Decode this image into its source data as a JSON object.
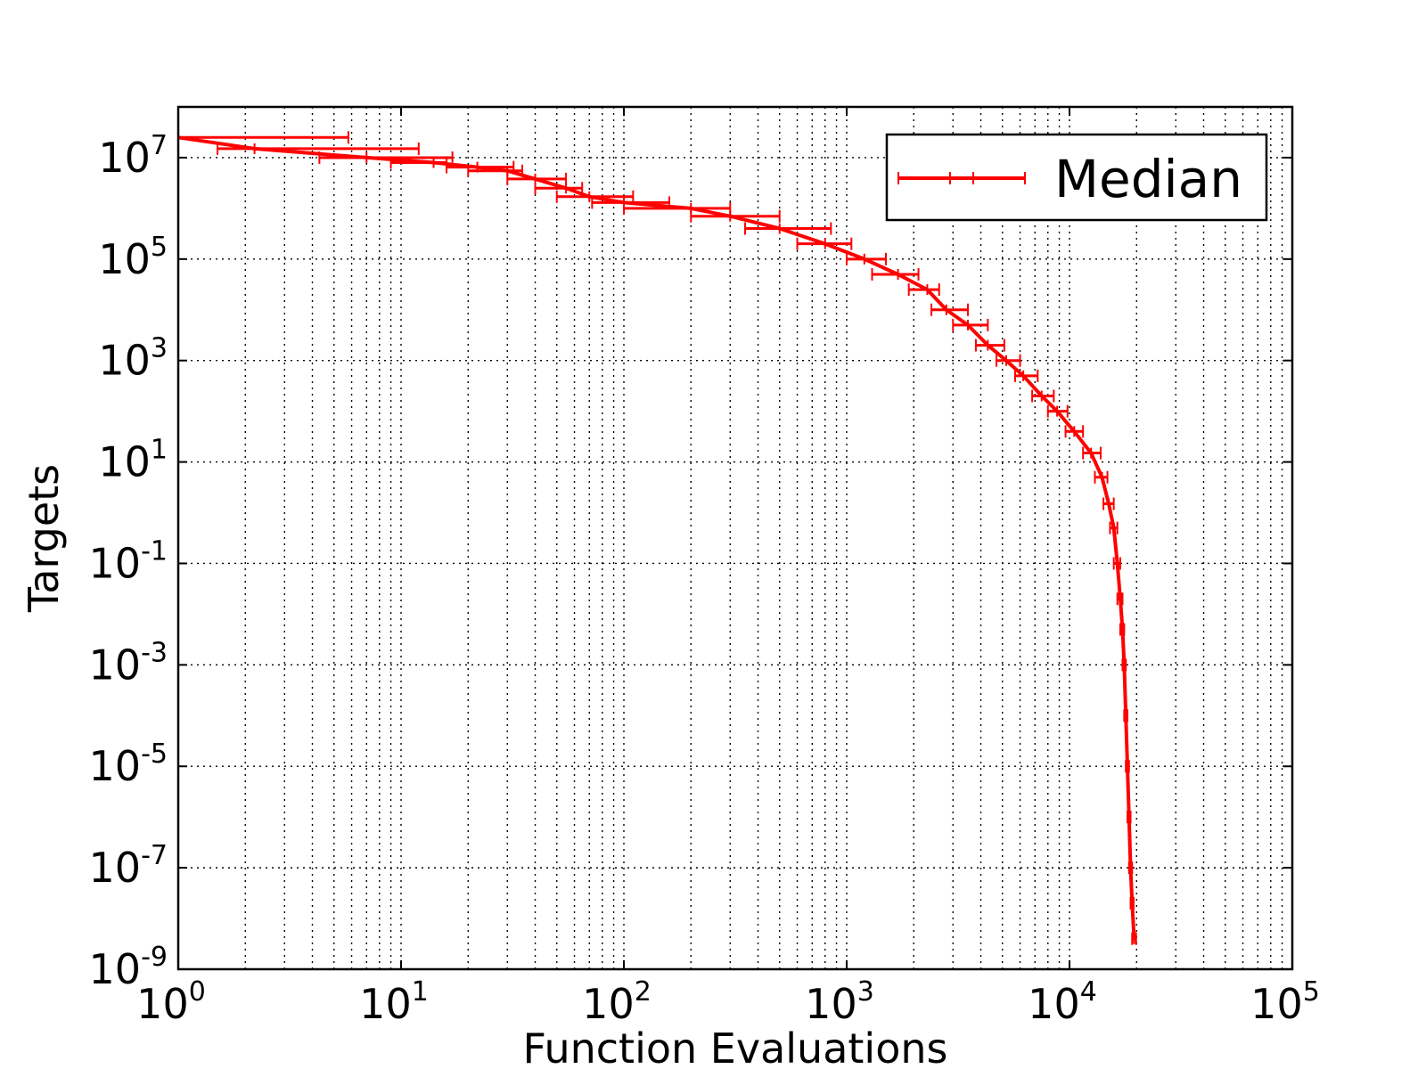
{
  "chart_data": {
    "type": "line",
    "xlabel": "Function Evaluations",
    "ylabel": "Targets",
    "xscale": "log",
    "yscale": "log",
    "xlim": [
      1,
      100000
    ],
    "ylim": [
      1e-09,
      100000000.0
    ],
    "grid": true,
    "legend": {
      "position": "top-right"
    },
    "x_ticks": [
      {
        "base": "10",
        "exp": "0"
      },
      {
        "base": "10",
        "exp": "1"
      },
      {
        "base": "10",
        "exp": "2"
      },
      {
        "base": "10",
        "exp": "3"
      },
      {
        "base": "10",
        "exp": "4"
      },
      {
        "base": "10",
        "exp": "5"
      }
    ],
    "y_ticks": [
      {
        "base": "10",
        "exp": "-9"
      },
      {
        "base": "10",
        "exp": "-7"
      },
      {
        "base": "10",
        "exp": "-5"
      },
      {
        "base": "10",
        "exp": "-3"
      },
      {
        "base": "10",
        "exp": "-1"
      },
      {
        "base": "10",
        "exp": "1"
      },
      {
        "base": "10",
        "exp": "3"
      },
      {
        "base": "10",
        "exp": "5"
      },
      {
        "base": "10",
        "exp": "7"
      }
    ],
    "series": [
      {
        "name": "Median",
        "color": "#ff0000",
        "marker": "horizontal error bars",
        "points": [
          {
            "x": 1,
            "y": 25000000,
            "xmin": 1,
            "xmax": 5.8
          },
          {
            "x": 2.2,
            "y": 15000000,
            "xmin": 1.5,
            "xmax": 12
          },
          {
            "x": 7,
            "y": 10000000,
            "xmin": 4.3,
            "xmax": 17
          },
          {
            "x": 14,
            "y": 8000000,
            "xmin": 9,
            "xmax": 16
          },
          {
            "x": 22,
            "y": 6500000,
            "xmin": 16,
            "xmax": 32
          },
          {
            "x": 30,
            "y": 5500000,
            "xmin": 20,
            "xmax": 35
          },
          {
            "x": 40,
            "y": 3800000,
            "xmin": 30,
            "xmax": 55
          },
          {
            "x": 55,
            "y": 2500000,
            "xmin": 40,
            "xmax": 65
          },
          {
            "x": 70,
            "y": 1700000,
            "xmin": 50,
            "xmax": 110
          },
          {
            "x": 100,
            "y": 1300000,
            "xmin": 72,
            "xmax": 160
          },
          {
            "x": 200,
            "y": 1000000,
            "xmin": 100,
            "xmax": 300
          },
          {
            "x": 300,
            "y": 700000,
            "xmin": 200,
            "xmax": 500
          },
          {
            "x": 500,
            "y": 400000,
            "xmin": 350,
            "xmax": 850
          },
          {
            "x": 800,
            "y": 200000,
            "xmin": 600,
            "xmax": 1050
          },
          {
            "x": 1200,
            "y": 100000,
            "xmin": 1000,
            "xmax": 1500
          },
          {
            "x": 1700,
            "y": 50000,
            "xmin": 1300,
            "xmax": 2100
          },
          {
            "x": 2300,
            "y": 25000,
            "xmin": 1900,
            "xmax": 2600
          },
          {
            "x": 2800,
            "y": 10000,
            "xmin": 2400,
            "xmax": 3500
          },
          {
            "x": 3500,
            "y": 5000,
            "xmin": 3000,
            "xmax": 4300
          },
          {
            "x": 4300,
            "y": 2000,
            "xmin": 3800,
            "xmax": 5100
          },
          {
            "x": 5200,
            "y": 1000,
            "xmin": 4700,
            "xmax": 6000
          },
          {
            "x": 6200,
            "y": 500,
            "xmin": 5700,
            "xmax": 7200
          },
          {
            "x": 7500,
            "y": 200,
            "xmin": 6800,
            "xmax": 8500
          },
          {
            "x": 8800,
            "y": 100,
            "xmin": 8000,
            "xmax": 9800
          },
          {
            "x": 10500,
            "y": 40,
            "xmin": 9600,
            "xmax": 11500
          },
          {
            "x": 12500,
            "y": 15,
            "xmin": 11500,
            "xmax": 13800
          },
          {
            "x": 14000,
            "y": 5,
            "xmin": 13000,
            "xmax": 14800
          },
          {
            "x": 15000,
            "y": 1.5,
            "xmin": 14200,
            "xmax": 15800
          },
          {
            "x": 15800,
            "y": 0.5,
            "xmin": 15200,
            "xmax": 16400
          },
          {
            "x": 16400,
            "y": 0.1,
            "xmin": 15800,
            "xmax": 16900
          },
          {
            "x": 16900,
            "y": 0.02,
            "xmin": 16400,
            "xmax": 17300
          },
          {
            "x": 17300,
            "y": 0.005,
            "xmin": 16900,
            "xmax": 17600
          },
          {
            "x": 17600,
            "y": 0.001,
            "xmin": 17300,
            "xmax": 17900
          },
          {
            "x": 17900,
            "y": 0.0001,
            "xmin": 17600,
            "xmax": 18200
          },
          {
            "x": 18200,
            "y": 1e-05,
            "xmin": 17900,
            "xmax": 18500
          },
          {
            "x": 18500,
            "y": 1e-06,
            "xmin": 18200,
            "xmax": 18800
          },
          {
            "x": 18800,
            "y": 1e-07,
            "xmin": 18500,
            "xmax": 19100
          },
          {
            "x": 19100,
            "y": 2e-08,
            "xmin": 18800,
            "xmax": 19400
          },
          {
            "x": 19500,
            "y": 4e-09,
            "xmin": 19100,
            "xmax": 19900
          }
        ]
      }
    ]
  }
}
